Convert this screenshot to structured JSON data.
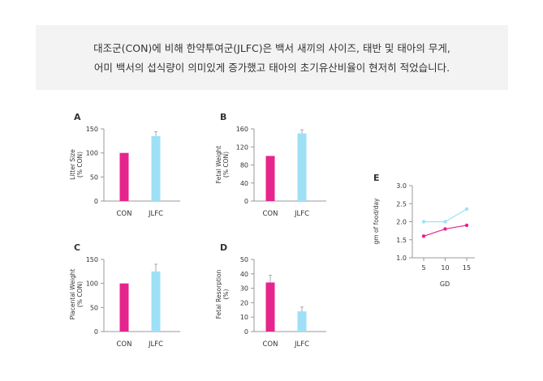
{
  "caption": {
    "line1": "대조군(CON)에 비해 한약투여군(JLFC)은 백서 새끼의 사이즈, 태반 및 태아의 무게,",
    "line2": "어미 백서의 섭식량이 의미있게 증가했고 태아의 초기유산비율이 현저히 적었습니다."
  },
  "colors": {
    "con": "#e6248e",
    "jlfc": "#9ee1f7",
    "error": "#aaaaaa",
    "axis": "#999999",
    "text": "#333333"
  },
  "chart_data": [
    {
      "panel": "A",
      "type": "bar",
      "categories": [
        "CON",
        "JLFC"
      ],
      "values": [
        100,
        135
      ],
      "errors": [
        0,
        9
      ],
      "ylabel": [
        "Litter Size",
        "(% CON)"
      ],
      "yticks": [
        0,
        50,
        100,
        150
      ],
      "ylim": [
        0,
        150
      ]
    },
    {
      "panel": "B",
      "type": "bar",
      "categories": [
        "CON",
        "JLFC"
      ],
      "values": [
        100,
        150
      ],
      "errors": [
        0,
        8
      ],
      "ylabel": [
        "Fetal Weight",
        "(% CON)"
      ],
      "yticks": [
        0,
        40,
        80,
        120,
        160
      ],
      "ylim": [
        0,
        160
      ]
    },
    {
      "panel": "C",
      "type": "bar",
      "categories": [
        "CON",
        "JLFC"
      ],
      "values": [
        100,
        125
      ],
      "errors": [
        0,
        15
      ],
      "ylabel": [
        "Placental Weight",
        "(% CON)"
      ],
      "yticks": [
        0,
        50,
        100,
        150
      ],
      "ylim": [
        0,
        150
      ]
    },
    {
      "panel": "D",
      "type": "bar",
      "categories": [
        "CON",
        "JLFC"
      ],
      "values": [
        34,
        14
      ],
      "errors": [
        5,
        3
      ],
      "ylabel": [
        "Fetal Resorption",
        "(%)"
      ],
      "yticks": [
        0,
        10,
        20,
        30,
        40,
        50
      ],
      "ylim": [
        0,
        50
      ]
    },
    {
      "panel": "E",
      "type": "line",
      "x": [
        5,
        10,
        15
      ],
      "series": [
        {
          "values": [
            1.6,
            1.8,
            1.9
          ]
        },
        {
          "values": [
            2.0,
            2.0,
            2.35
          ]
        }
      ],
      "xlabel": "GD",
      "ylabel": "gm of food/day",
      "xticks": [
        5,
        10,
        15
      ],
      "yticks": [
        1.0,
        1.5,
        2.0,
        2.5,
        3.0
      ],
      "ylim": [
        1.0,
        3.0
      ]
    }
  ]
}
